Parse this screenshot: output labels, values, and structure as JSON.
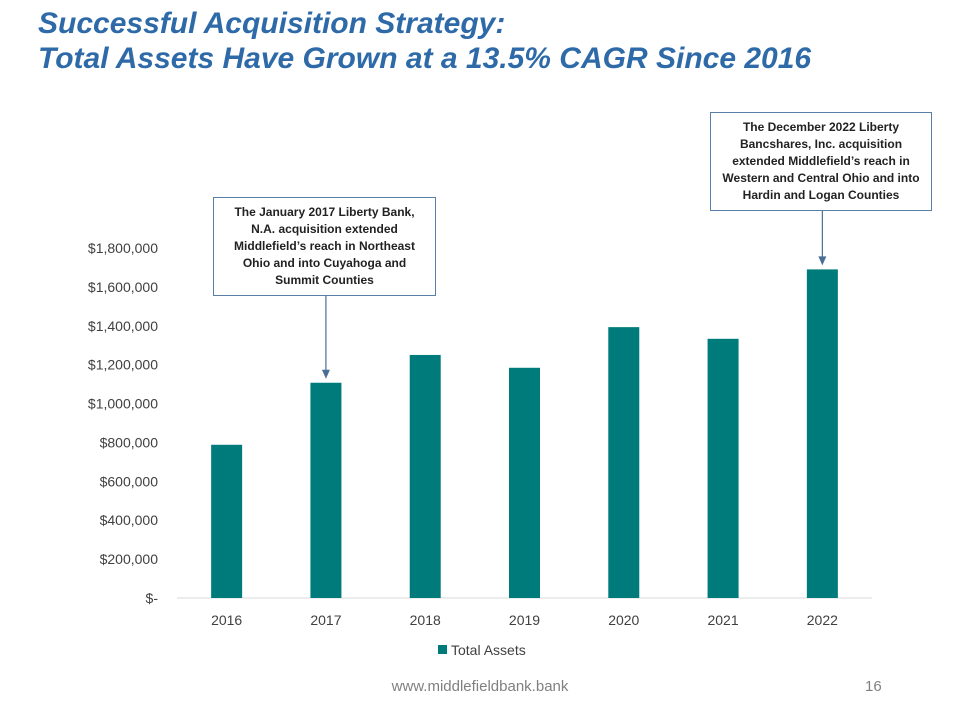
{
  "slide": {
    "title_line1": "Successful Acquisition Strategy:",
    "title_line2": "Total Assets Have Grown at a 13.5% CAGR Since 2016",
    "footer_url": "www.middlefieldbank.bank",
    "page_number": "16"
  },
  "callouts": {
    "acq_2017": "The January 2017 Liberty Bank, N.A. acquisition extended Middlefield’s reach in Northeast Ohio and into Cuyahoga and Summit Counties",
    "acq_2022": "The December 2022 Liberty Bancshares, Inc. acquisition extended Middlefield’s reach in Western and Central Ohio and into Hardin and Logan Counties"
  },
  "chart_data": {
    "type": "bar",
    "title": "",
    "xlabel": "",
    "ylabel": "",
    "categories": [
      "2016",
      "2017",
      "2018",
      "2019",
      "2020",
      "2021",
      "2022"
    ],
    "series": [
      {
        "name": "Total Assets",
        "values": [
          788000,
          1107000,
          1250000,
          1184000,
          1393000,
          1333000,
          1690000
        ]
      }
    ],
    "ylim": [
      0,
      1800000
    ],
    "yticks": [
      0,
      200000,
      400000,
      600000,
      800000,
      1000000,
      1200000,
      1400000,
      1600000,
      1800000
    ],
    "ytick_labels": [
      "$-",
      "$200,000",
      "$400,000",
      "$600,000",
      "$800,000",
      "$1,000,000",
      "$1,200,000",
      "$1,400,000",
      "$1,600,000",
      "$1,800,000"
    ],
    "legend": "bottom-center",
    "grid": false,
    "color": "#007b7b"
  }
}
